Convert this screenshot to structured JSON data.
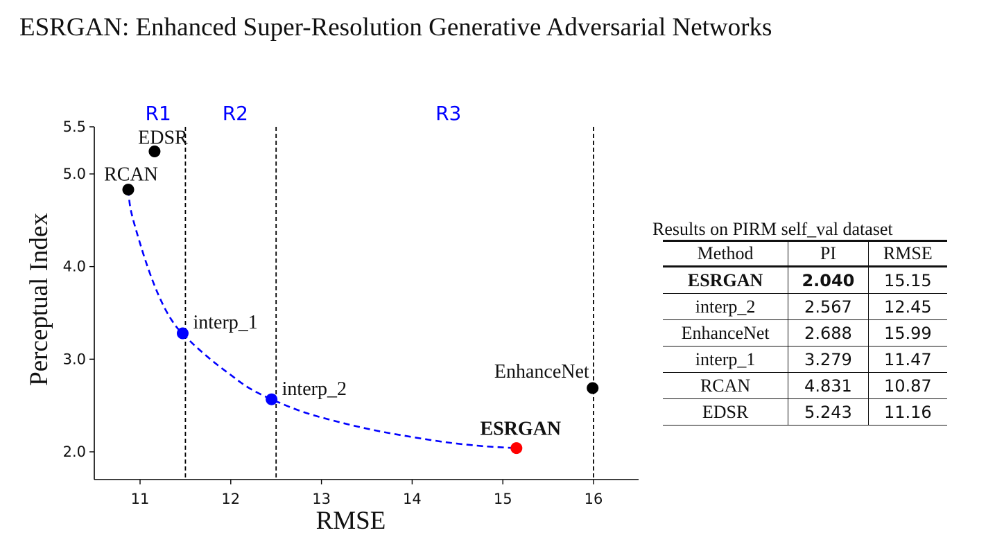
{
  "page": {
    "title": "ESRGAN: Enhanced Super-Resolution Generative Adversarial Networks"
  },
  "chart_data": {
    "type": "scatter",
    "title": "",
    "xlabel": "RMSE",
    "ylabel": "Perceptual Index",
    "xlim": [
      10.5,
      16.5
    ],
    "ylim": [
      1.7,
      5.5
    ],
    "x_ticks": [
      11,
      12,
      13,
      14,
      15,
      16
    ],
    "y_ticks": [
      2.0,
      3.0,
      4.0,
      5.0,
      5.5
    ],
    "y_tick_labels": [
      "2.0",
      "3.0",
      "4.0",
      "5.0",
      "5.5"
    ],
    "grid": false,
    "regions": [
      {
        "label": "R1",
        "x": 11.2
      },
      {
        "label": "R2",
        "x": 12.05
      },
      {
        "label": "R3",
        "x": 14.4
      }
    ],
    "region_boundaries": [
      11.5,
      12.5,
      16.0
    ],
    "points": [
      {
        "label": "EDSR",
        "x": 11.16,
        "y": 5.243,
        "color": "#000000",
        "bold": false
      },
      {
        "label": "RCAN",
        "x": 10.87,
        "y": 4.831,
        "color": "#000000",
        "bold": false
      },
      {
        "label": "interp_1",
        "x": 11.47,
        "y": 3.279,
        "color": "#0000ff",
        "bold": false
      },
      {
        "label": "interp_2",
        "x": 12.45,
        "y": 2.567,
        "color": "#0000ff",
        "bold": false
      },
      {
        "label": "ESRGAN",
        "x": 15.15,
        "y": 2.04,
        "color": "#ff0000",
        "bold": true
      },
      {
        "label": "EnhanceNet",
        "x": 15.99,
        "y": 2.688,
        "color": "#000000",
        "bold": false
      }
    ],
    "curve": {
      "color": "#0000ff",
      "style": "dashed",
      "x": [
        10.87,
        10.9,
        11.0,
        11.1,
        11.2,
        11.3,
        11.4,
        11.47,
        11.6,
        11.8,
        12.0,
        12.2,
        12.45,
        12.8,
        13.2,
        13.6,
        14.0,
        14.4,
        14.8,
        15.15
      ],
      "y": [
        4.831,
        4.6,
        4.25,
        3.95,
        3.7,
        3.5,
        3.35,
        3.279,
        3.15,
        2.98,
        2.83,
        2.69,
        2.567,
        2.43,
        2.32,
        2.23,
        2.16,
        2.1,
        2.06,
        2.04
      ]
    },
    "colors": {
      "axis": "#000000",
      "region_label": "#0000ff",
      "dashed_line": "#000000"
    }
  },
  "results": {
    "caption": "Results on PIRM self_val dataset",
    "headers": [
      "Method",
      "PI",
      "RMSE"
    ],
    "rows": [
      {
        "method": "ESRGAN",
        "pi": "2.040",
        "rmse": "15.15"
      },
      {
        "method": "interp_2",
        "pi": "2.567",
        "rmse": "12.45"
      },
      {
        "method": "EnhanceNet",
        "pi": "2.688",
        "rmse": "15.99"
      },
      {
        "method": "interp_1",
        "pi": "3.279",
        "rmse": "11.47"
      },
      {
        "method": "RCAN",
        "pi": "4.831",
        "rmse": "10.87"
      },
      {
        "method": "EDSR",
        "pi": "5.243",
        "rmse": "11.16"
      }
    ]
  }
}
